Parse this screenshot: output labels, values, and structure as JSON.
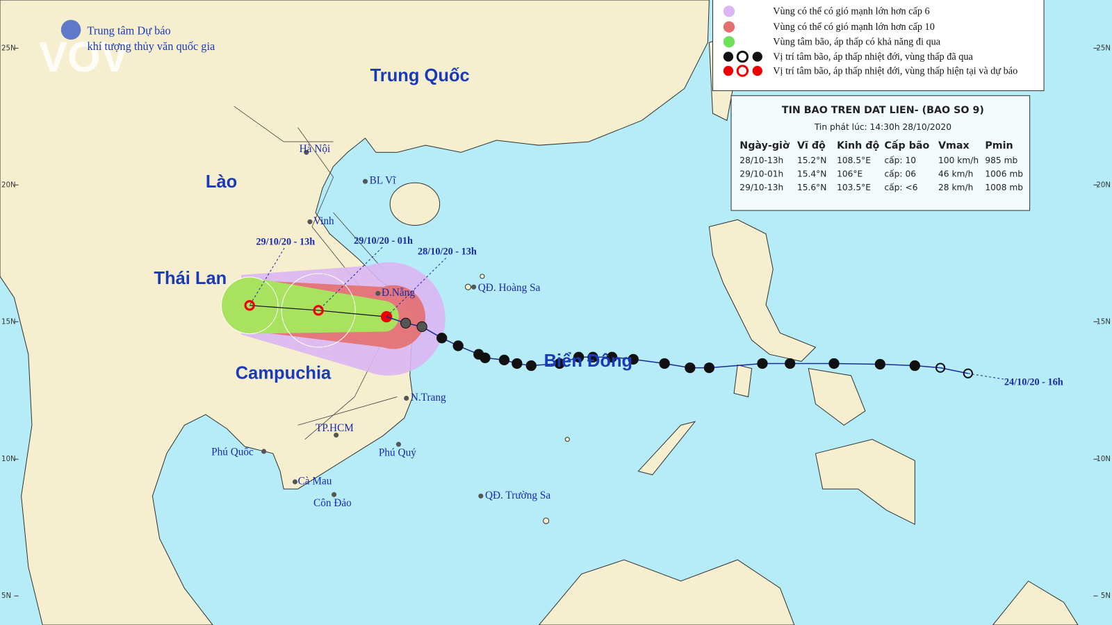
{
  "header": {
    "org_line1": "Trung tâm Dự báo",
    "org_line2": "khí tượng thủy văn quốc gia",
    "logo": "VOV"
  },
  "lat_labels": [
    "25N",
    "20N",
    "15N",
    "10N",
    "5N"
  ],
  "legend": {
    "items": [
      "Vùng có thể có gió mạnh lớn hơn cấp 6",
      "Vùng có thể có gió mạnh lớn hơn cấp 10",
      "Vùng tâm bão, áp thấp có khả năng đi qua",
      "Vị trí tâm bão, áp thấp nhiệt đới, vùng thấp đã qua",
      "Vị trí tâm bão, áp thấp nhiệt đới, vùng thấp hiện tại và dự báo"
    ]
  },
  "bulletin": {
    "title": "TIN BAO TREN DAT LIEN- (BAO SO 9)",
    "issued": "Tin phát lúc: 14:30h 28/10/2020",
    "columns": [
      "Ngày-giờ",
      "Vĩ độ",
      "Kinh độ",
      "Cấp bão",
      "Vmax",
      "Pmin"
    ],
    "rows": [
      [
        "28/10-13h",
        "15.2°N",
        "108.5°E",
        "cấp: 10",
        "100 km/h",
        "985 mb"
      ],
      [
        "29/10-01h",
        "15.4°N",
        "106°E",
        "cấp: 06",
        "46 km/h",
        "1006 mb"
      ],
      [
        "29/10-13h",
        "15.6°N",
        "103.5°E",
        "cấp: <6",
        "28 km/h",
        "1008 mb"
      ]
    ]
  },
  "map_labels": {
    "countries": [
      "Trung Quốc",
      "Lào",
      "Thái Lan",
      "Campuchia",
      "Biển Đông"
    ],
    "places": [
      "Hà Nội",
      "BL Vĩ",
      "Vinh",
      "Đ.Nẵng",
      "QĐ. Hoàng Sa",
      "N.Trang",
      "TP.HCM",
      "Phú Quốc",
      "Phú Quý",
      "Cà Mau",
      "Côn Đảo",
      "QĐ. Trường Sa"
    ],
    "times": [
      "29/10/20 - 13h",
      "29/10/20 - 01h",
      "28/10/20 - 13h",
      "24/10/20 - 16h"
    ]
  }
}
